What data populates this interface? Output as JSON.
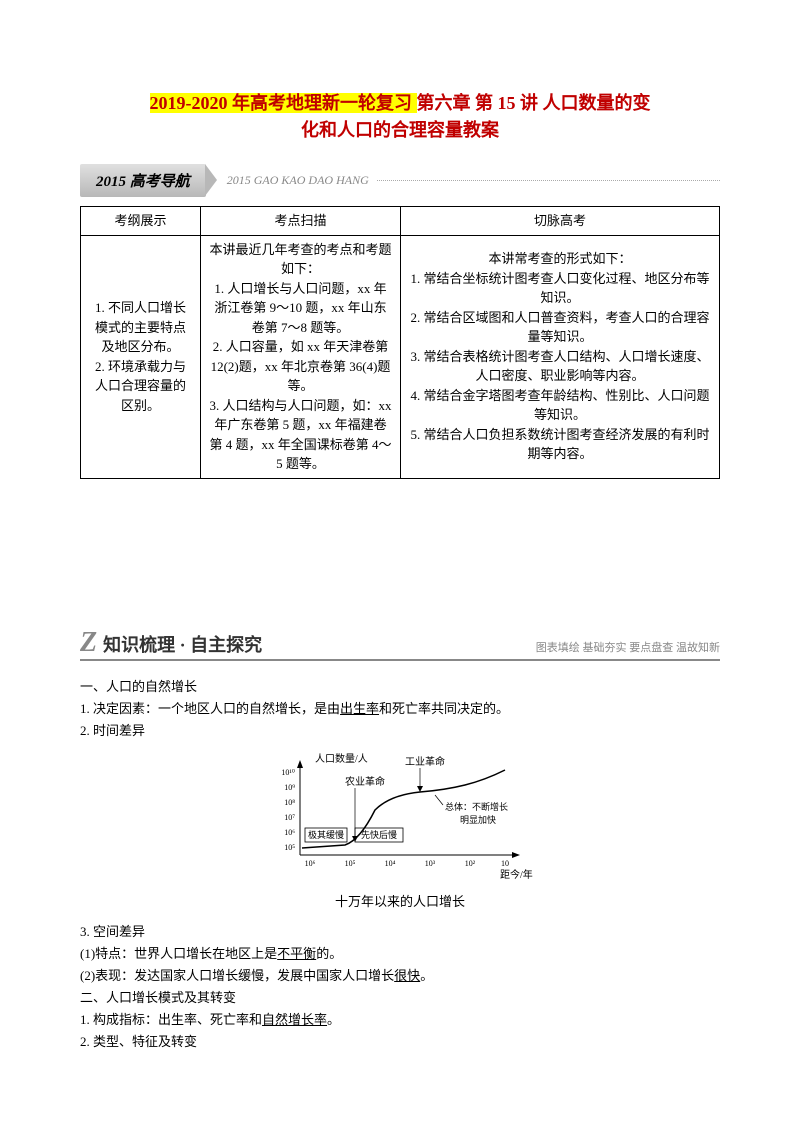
{
  "title": {
    "line1_prefix": "2019-2020 年高考地理新一轮复习 ",
    "line1_suffix": "第六章 第 15 讲 人口数量的变",
    "line2": "化和人口的合理容量教案"
  },
  "banner1": {
    "label": "2015 高考导航",
    "sub": "2015 GAO KAO DAO HANG"
  },
  "table": {
    "headers": [
      "考纲展示",
      "考点扫描",
      "切脉高考"
    ],
    "col1": "1. 不同人口增长模式的主要特点及地区分布。\n2. 环境承载力与人口合理容量的区别。",
    "col2": "本讲最近几年考查的考点和考题如下：\n1. 人口增长与人口问题，xx 年浙江卷第 9～10 题，xx 年山东卷第 7～8 题等。\n2. 人口容量，如 xx 年天津卷第 12(2)题，xx 年北京卷第 36(4)题等。\n3. 人口结构与人口问题，如：xx 年广东卷第 5 题，xx 年福建卷第 4 题，xx 年全国课标卷第 4～5 题等。",
    "col3": "本讲常考查的形式如下：\n1. 常结合坐标统计图考查人口变化过程、地区分布等知识。\n2. 常结合区域图和人口普查资料，考查人口的合理容量等知识。\n3. 常结合表格统计图考查人口结构、人口增长速度、人口密度、职业影响等内容。\n4. 常结合金字塔图考查年龄结构、性别比、人口问题等知识。\n5. 常结合人口负担系数统计图考查经济发展的有利时期等内容。"
  },
  "section": {
    "z": "Z",
    "title": "知识梳理 · 自主探究",
    "subtitle": "图表填绘 基础夯实 要点盘查 温故知新"
  },
  "content": {
    "h1": "一、人口的自然增长",
    "p1_pre": "1. 决定因素：一个地区人口的自然增长，是由",
    "p1_u": "出生率",
    "p1_post": "和死亡率共同决定的。",
    "p2": "2. 时间差异",
    "chart": {
      "ylabel": "人口数量/人",
      "yticks": [
        "10¹⁰",
        "10⁹",
        "10⁸",
        "10⁷",
        "10⁶",
        "10⁵"
      ],
      "xlabel": "距今/年",
      "xticks": [
        "10⁶",
        "10⁵",
        "10⁴",
        "10³",
        "10²",
        "10"
      ],
      "label_agri": "农业革命",
      "label_ind": "工业革命",
      "box1": "极其缓慢",
      "box2": "先快后慢",
      "note_top": "总体：不断增长",
      "note_bot": "明显加快",
      "caption": "十万年以来的人口增长"
    },
    "p3": "3. 空间差异",
    "p4_pre": "(1)特点：世界人口增长在地区上是",
    "p4_u": "不平衡",
    "p4_post": "的。",
    "p5_pre": "(2)表现：发达国家人口增长缓慢，发展中国家人口增长",
    "p5_u": "很快",
    "p5_post": "。",
    "h2": "二、人口增长模式及其转变",
    "p6_pre": "1. 构成指标：出生率、死亡率和",
    "p6_u": "自然增长率",
    "p6_post": "。",
    "p7": "2. 类型、特征及转变"
  }
}
